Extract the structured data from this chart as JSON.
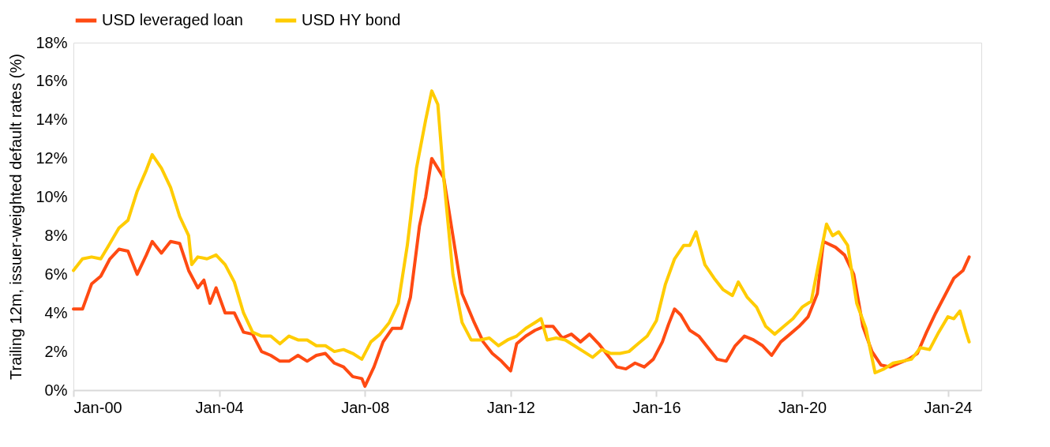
{
  "chart_data": {
    "type": "line",
    "ylabel": "Trailing 12m, issuer-weighted default rates (%)",
    "xlim": [
      "2000-01",
      "2024-12"
    ],
    "xticks": [
      {
        "value": "2000-01",
        "label": "Jan-00"
      },
      {
        "value": "2004-01",
        "label": "Jan-04"
      },
      {
        "value": "2008-01",
        "label": "Jan-08"
      },
      {
        "value": "2012-01",
        "label": "Jan-12"
      },
      {
        "value": "2016-01",
        "label": "Jan-16"
      },
      {
        "value": "2020-01",
        "label": "Jan-20"
      },
      {
        "value": "2024-01",
        "label": "Jan-24"
      }
    ],
    "ylim": [
      0,
      18
    ],
    "yticks": [
      {
        "value": 0,
        "label": "0%"
      },
      {
        "value": 2,
        "label": "2%"
      },
      {
        "value": 4,
        "label": "4%"
      },
      {
        "value": 6,
        "label": "6%"
      },
      {
        "value": 8,
        "label": "8%"
      },
      {
        "value": 10,
        "label": "10%"
      },
      {
        "value": 12,
        "label": "12%"
      },
      {
        "value": 14,
        "label": "14%"
      },
      {
        "value": 16,
        "label": "16%"
      },
      {
        "value": 18,
        "label": "18%"
      }
    ],
    "grid": false,
    "legend": "top",
    "line_style": "solid",
    "marker": "none",
    "series": [
      {
        "name": "USD leveraged loan",
        "color": "#ff4a12",
        "x": [
          "2000-01",
          "2000-04",
          "2000-07",
          "2000-10",
          "2001-01",
          "2001-04",
          "2001-07",
          "2001-10",
          "2002-01",
          "2002-03",
          "2002-06",
          "2002-09",
          "2002-12",
          "2003-03",
          "2003-06",
          "2003-08",
          "2003-10",
          "2003-12",
          "2004-03",
          "2004-06",
          "2004-09",
          "2004-12",
          "2005-03",
          "2005-06",
          "2005-09",
          "2005-12",
          "2006-03",
          "2006-06",
          "2006-09",
          "2006-12",
          "2007-03",
          "2007-06",
          "2007-09",
          "2007-12",
          "2008-01",
          "2008-04",
          "2008-07",
          "2008-10",
          "2009-01",
          "2009-04",
          "2009-07",
          "2009-09",
          "2009-11",
          "2010-03",
          "2010-06",
          "2010-09",
          "2011-01",
          "2011-04",
          "2011-07",
          "2011-10",
          "2012-01",
          "2012-03",
          "2012-06",
          "2012-09",
          "2012-12",
          "2013-03",
          "2013-06",
          "2013-09",
          "2013-12",
          "2014-03",
          "2014-06",
          "2014-09",
          "2014-12",
          "2015-03",
          "2015-06",
          "2015-09",
          "2015-12",
          "2016-03",
          "2016-05",
          "2016-07",
          "2016-09",
          "2016-12",
          "2017-03",
          "2017-06",
          "2017-09",
          "2017-12",
          "2018-03",
          "2018-06",
          "2018-09",
          "2018-12",
          "2019-03",
          "2019-06",
          "2019-09",
          "2019-12",
          "2020-03",
          "2020-06",
          "2020-08",
          "2020-12",
          "2021-03",
          "2021-06",
          "2021-09",
          "2021-12",
          "2022-03",
          "2022-06",
          "2022-09",
          "2022-12",
          "2023-03",
          "2023-06",
          "2023-09",
          "2023-12",
          "2024-03",
          "2024-06",
          "2024-08"
        ],
        "values": [
          4.2,
          4.2,
          5.5,
          5.9,
          6.8,
          7.3,
          7.2,
          6.0,
          7.0,
          7.7,
          7.1,
          7.7,
          7.6,
          6.2,
          5.3,
          5.7,
          4.5,
          5.3,
          4.0,
          4.0,
          3.0,
          2.9,
          2.0,
          1.8,
          1.5,
          1.5,
          1.8,
          1.5,
          1.8,
          1.9,
          1.4,
          1.2,
          0.7,
          0.6,
          0.2,
          1.2,
          2.5,
          3.2,
          3.2,
          4.8,
          8.5,
          10.0,
          12.0,
          11.0,
          8.0,
          5.0,
          3.5,
          2.5,
          1.9,
          1.5,
          1.0,
          2.4,
          2.8,
          3.1,
          3.3,
          3.3,
          2.7,
          2.9,
          2.5,
          2.9,
          2.4,
          1.8,
          1.2,
          1.1,
          1.4,
          1.2,
          1.6,
          2.5,
          3.4,
          4.2,
          3.9,
          3.1,
          2.8,
          2.2,
          1.6,
          1.5,
          2.3,
          2.8,
          2.6,
          2.3,
          1.8,
          2.5,
          2.9,
          3.3,
          3.8,
          5.0,
          7.7,
          7.4,
          7.0,
          6.0,
          3.3,
          2.0,
          1.3,
          1.2,
          1.4,
          1.6,
          1.9,
          3.0,
          4.0,
          4.9,
          5.8,
          6.2,
          6.9
        ]
      },
      {
        "name": "USD HY bond",
        "color": "#ffcc00",
        "x": [
          "2000-01",
          "2000-04",
          "2000-07",
          "2000-10",
          "2001-01",
          "2001-04",
          "2001-07",
          "2001-10",
          "2002-01",
          "2002-03",
          "2002-06",
          "2002-09",
          "2002-12",
          "2003-03",
          "2003-04",
          "2003-06",
          "2003-09",
          "2003-12",
          "2004-03",
          "2004-06",
          "2004-09",
          "2004-12",
          "2005-03",
          "2005-06",
          "2005-09",
          "2005-12",
          "2006-03",
          "2006-06",
          "2006-09",
          "2006-12",
          "2007-03",
          "2007-06",
          "2007-09",
          "2007-12",
          "2008-03",
          "2008-06",
          "2008-09",
          "2008-12",
          "2009-03",
          "2009-06",
          "2009-09",
          "2009-11",
          "2010-01",
          "2010-03",
          "2010-06",
          "2010-09",
          "2010-12",
          "2011-03",
          "2011-06",
          "2011-09",
          "2011-12",
          "2012-03",
          "2012-06",
          "2012-09",
          "2012-11",
          "2013-01",
          "2013-04",
          "2013-07",
          "2013-10",
          "2014-01",
          "2014-04",
          "2014-07",
          "2014-10",
          "2015-01",
          "2015-04",
          "2015-07",
          "2015-10",
          "2016-01",
          "2016-04",
          "2016-07",
          "2016-10",
          "2016-12",
          "2017-02",
          "2017-05",
          "2017-08",
          "2017-11",
          "2018-02",
          "2018-04",
          "2018-07",
          "2018-10",
          "2019-01",
          "2019-04",
          "2019-07",
          "2019-10",
          "2020-01",
          "2020-04",
          "2020-07",
          "2020-09",
          "2020-11",
          "2021-01",
          "2021-04",
          "2021-07",
          "2021-10",
          "2022-01",
          "2022-04",
          "2022-07",
          "2022-10",
          "2023-01",
          "2023-04",
          "2023-07",
          "2023-10",
          "2024-01",
          "2024-03",
          "2024-05",
          "2024-07",
          "2024-08"
        ],
        "values": [
          6.2,
          6.8,
          6.9,
          6.8,
          7.6,
          8.4,
          8.8,
          10.3,
          11.4,
          12.2,
          11.5,
          10.5,
          9.0,
          8.0,
          6.5,
          6.9,
          6.8,
          7.0,
          6.5,
          5.6,
          4.0,
          3.0,
          2.8,
          2.8,
          2.4,
          2.8,
          2.6,
          2.6,
          2.3,
          2.3,
          2.0,
          2.1,
          1.9,
          1.6,
          2.5,
          2.9,
          3.5,
          4.5,
          7.5,
          11.5,
          14.0,
          15.5,
          14.8,
          11.0,
          6.0,
          3.5,
          2.6,
          2.6,
          2.7,
          2.3,
          2.6,
          2.8,
          3.2,
          3.5,
          3.7,
          2.6,
          2.7,
          2.6,
          2.3,
          2.0,
          1.7,
          2.1,
          1.9,
          1.9,
          2.0,
          2.4,
          2.8,
          3.6,
          5.5,
          6.8,
          7.5,
          7.5,
          8.2,
          6.5,
          5.8,
          5.2,
          4.9,
          5.6,
          4.8,
          4.3,
          3.3,
          2.9,
          3.3,
          3.7,
          4.3,
          4.6,
          7.0,
          8.6,
          8.0,
          8.2,
          7.5,
          4.5,
          3.2,
          0.9,
          1.1,
          1.4,
          1.5,
          1.6,
          2.2,
          2.1,
          3.0,
          3.8,
          3.7,
          4.1,
          3.0,
          2.5
        ]
      }
    ]
  }
}
